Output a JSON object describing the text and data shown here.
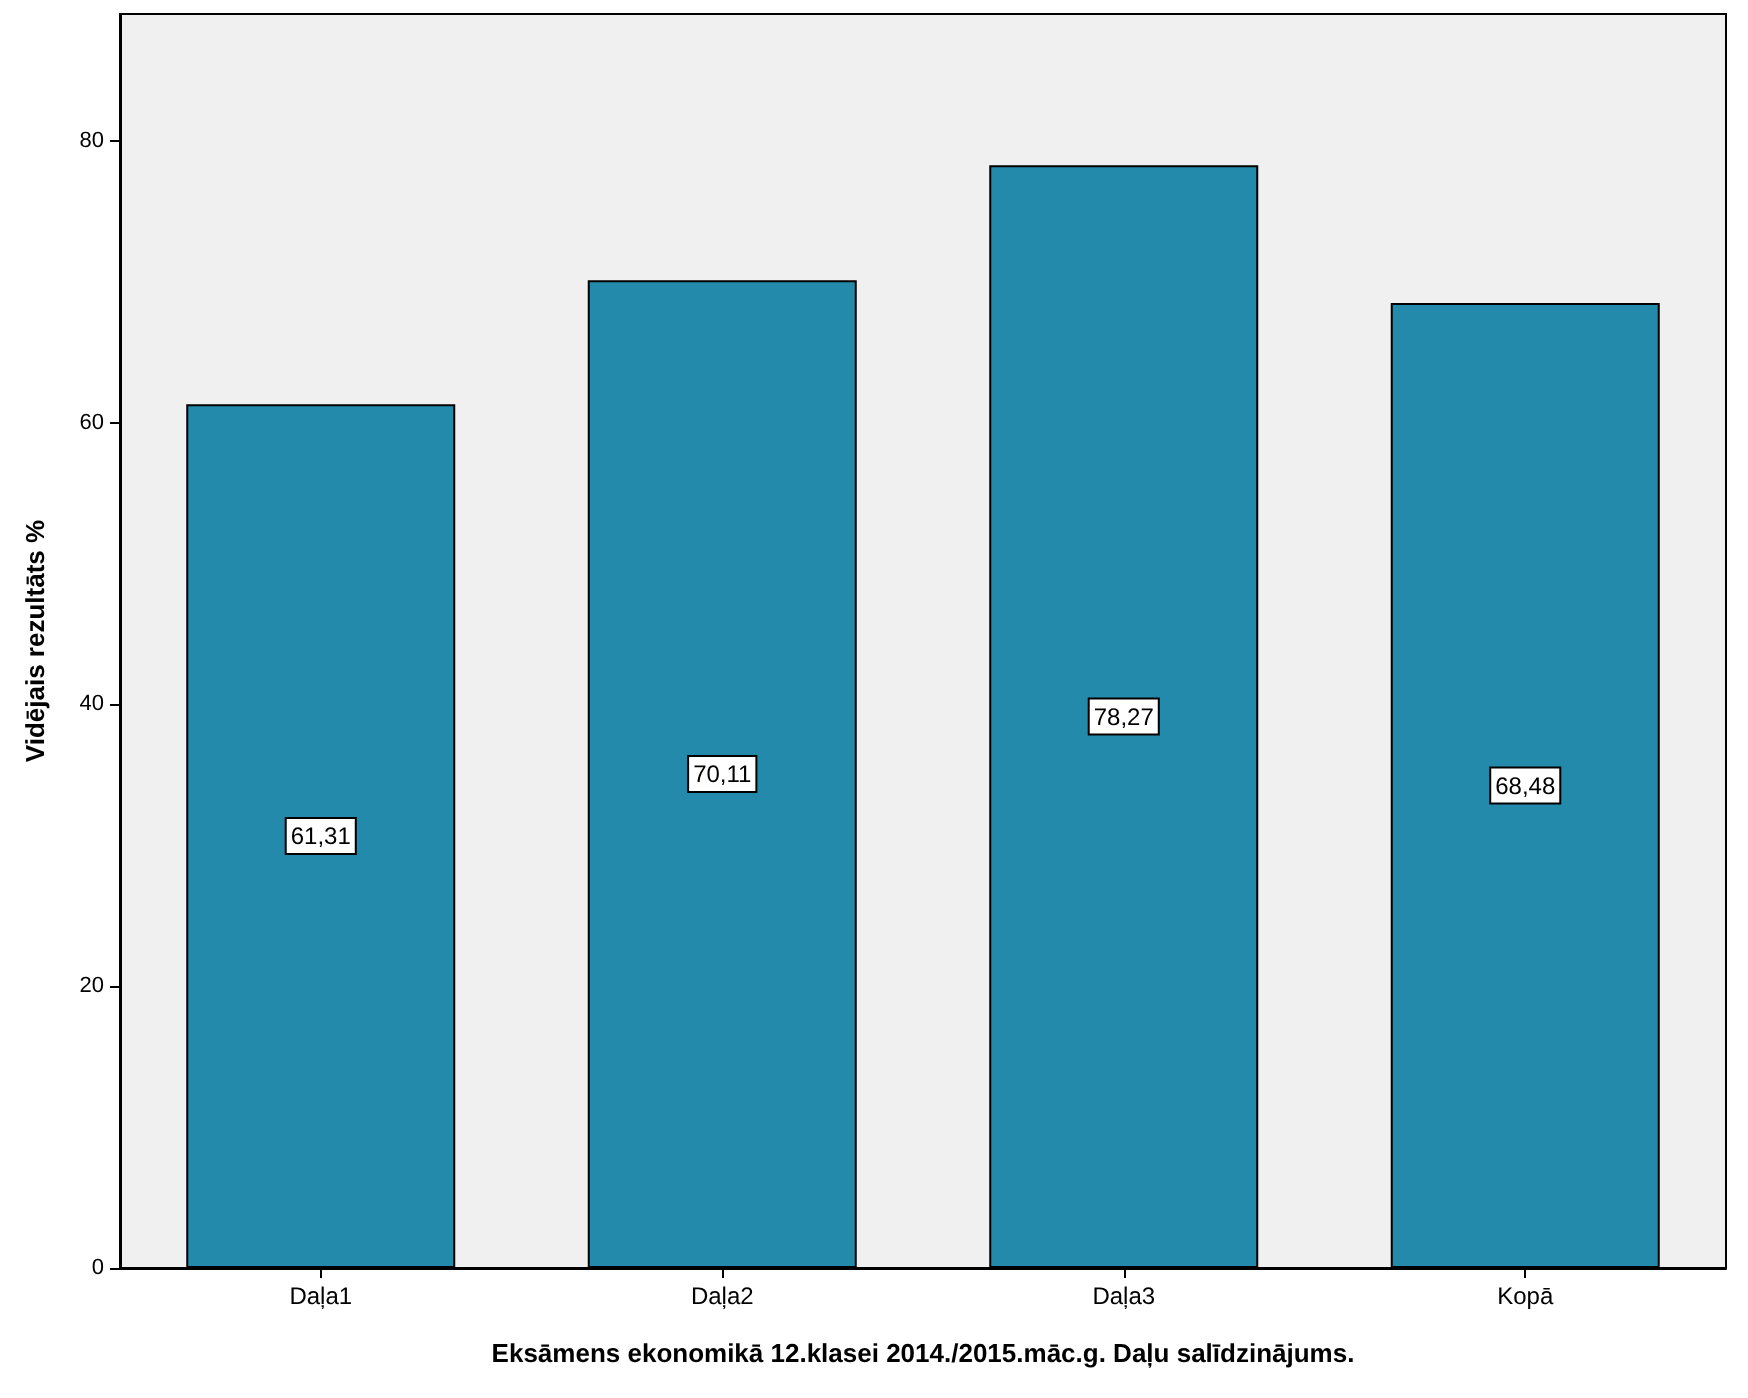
{
  "chart_data": {
    "type": "bar",
    "xlabel": "Eksāmens ekonomikā 12.klasei 2014./2015.māc.g. Daļu salīdzinājums.",
    "ylabel": "Vidējais rezultāts %",
    "categories": [
      "Daļa1",
      "Daļa2",
      "Daļa3",
      "Kopā"
    ],
    "values": [
      61.31,
      70.11,
      78.27,
      68.48
    ],
    "value_labels": [
      "61,31",
      "70,11",
      "78,27",
      "68,48"
    ],
    "color": "#248aab",
    "ylim": [
      0,
      89
    ],
    "yticks": [
      0,
      20,
      40,
      60,
      80
    ],
    "grid": false
  }
}
